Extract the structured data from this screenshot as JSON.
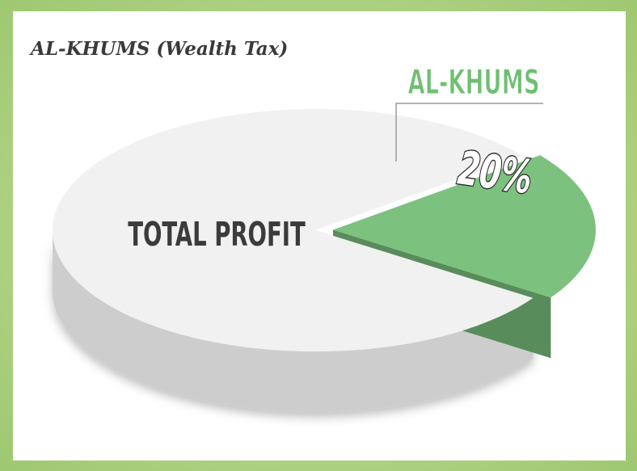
{
  "chart_data": {
    "type": "pie3d",
    "title": "AL-KHUMS (Wealth Tax)",
    "categories": [
      "TOTAL PROFIT",
      "AL-KHUMS"
    ],
    "values": [
      80,
      20
    ],
    "value_labels": [
      null,
      "20%"
    ],
    "colors": [
      "#f1f1f1",
      "#7cc27e"
    ]
  }
}
